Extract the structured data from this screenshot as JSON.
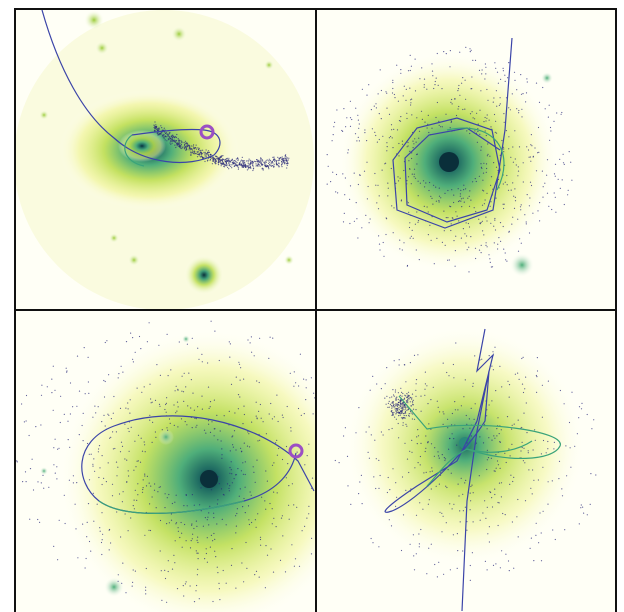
{
  "figure": {
    "layout": "2x2 grid",
    "colors": {
      "background": "#fffff6",
      "frame": "#111111",
      "glow_outer": "#eef38a",
      "glow_mid": "#b9dc4a",
      "glow_inner": "#4fae7a",
      "core": "#0a2f3a",
      "orbit_path_blue": "#3b44a8",
      "orbit_path_green": "#3aa37a",
      "stream_particles": "#2a2a7a",
      "satellite_marker": "#9b4fc4"
    },
    "panels": [
      {
        "id": "top-left",
        "description_name": "galaxy-with-tidal-stream"
      },
      {
        "id": "top-right",
        "description_name": "galaxy-with-polygonal-orbit"
      },
      {
        "id": "bottom-left",
        "description_name": "galaxy-with-elliptical-orbit"
      },
      {
        "id": "bottom-right",
        "description_name": "galaxy-with-crossing-orbits"
      }
    ]
  }
}
